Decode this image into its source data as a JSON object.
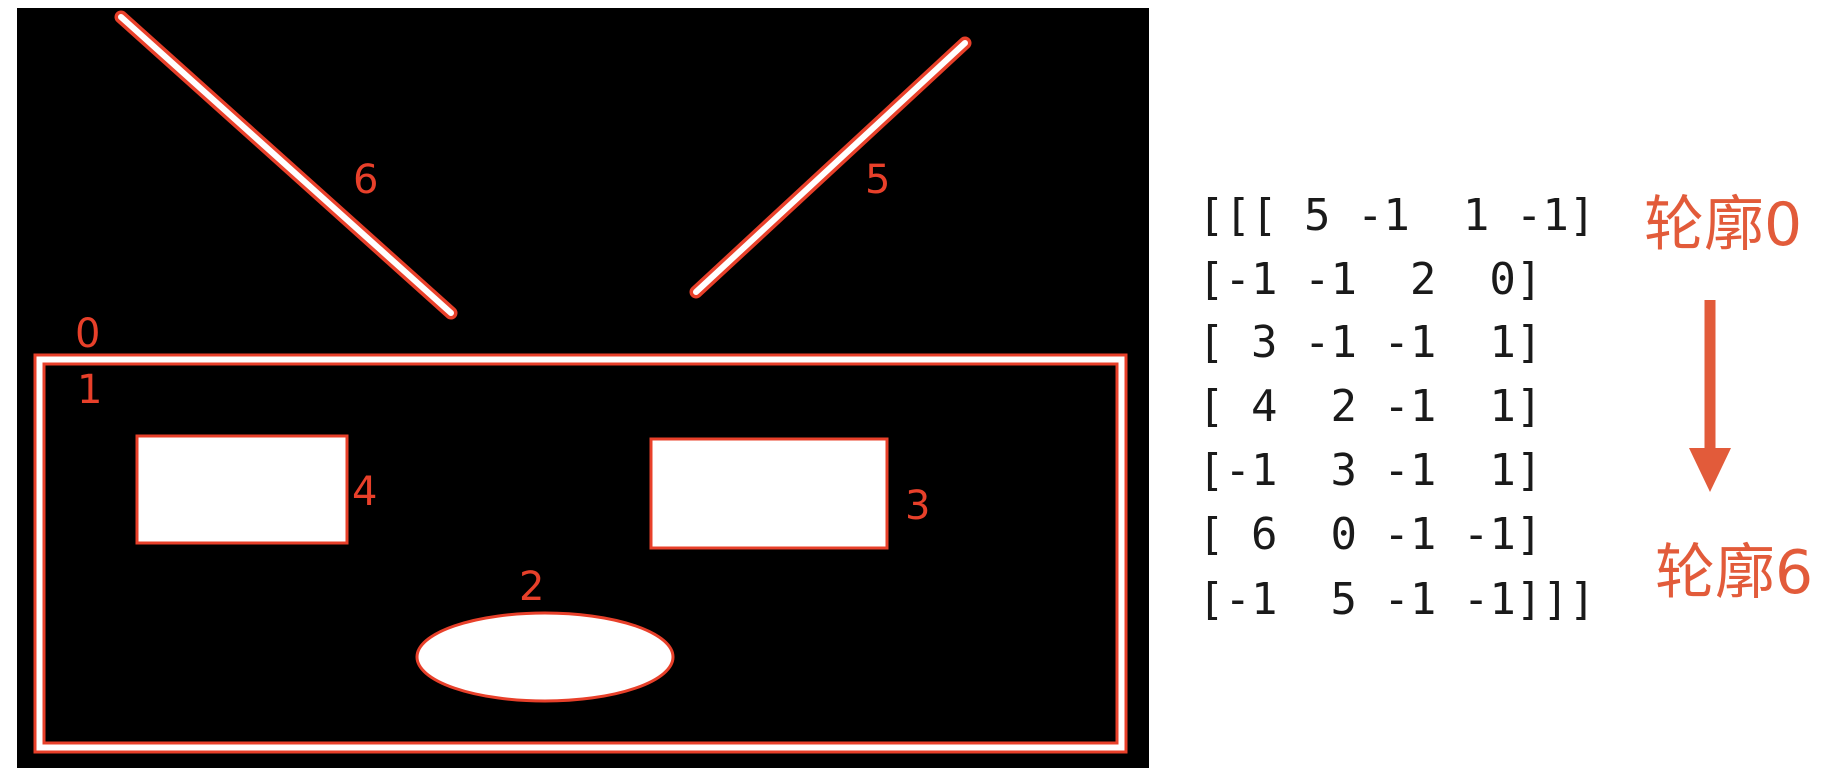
{
  "contour_labels": {
    "c0": "0",
    "c1": "1",
    "c2": "2",
    "c3": "3",
    "c4": "4",
    "c5": "5",
    "c6": "6"
  },
  "hierarchy_rows": [
    "[[[ 5 -1  1 -1]",
    "[-1 -1  2  0]",
    "[ 3 -1 -1  1]",
    "[ 4  2 -1  1]",
    "[-1  3 -1  1]",
    "[ 6  0 -1 -1]",
    "[-1  5 -1 -1]]]"
  ],
  "annotations": {
    "top": "轮廓0",
    "bottom": "轮廓6"
  },
  "colors": {
    "canvas": "#000000",
    "contour": "#e8402a",
    "shape_fill": "#ffffff",
    "matrix_text": "#1a1a1a",
    "annotation": "#e25b3a"
  }
}
